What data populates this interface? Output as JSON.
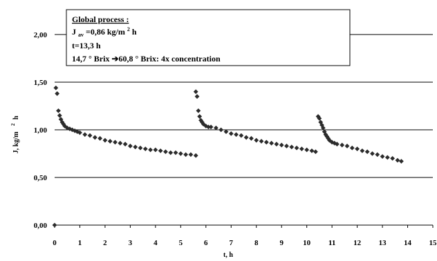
{
  "chart_data": {
    "type": "scatter",
    "title": "",
    "xlabel": "t, h",
    "ylabel_parts": {
      "main": "J, kg/m",
      "exp": "2",
      "tail": "h"
    },
    "xlim": [
      0,
      15
    ],
    "ylim": [
      0,
      2
    ],
    "x_ticks": [
      "0",
      "1",
      "2",
      "3",
      "4",
      "5",
      "6",
      "7",
      "8",
      "9",
      "10",
      "11",
      "12",
      "13",
      "14",
      "15"
    ],
    "y_ticks": [
      "0,00",
      "0,50",
      "1,00",
      "1,50",
      "2,00"
    ],
    "grid": "horizontal",
    "legend": "none",
    "marker": "diamond",
    "color": "#2b2b2b",
    "annotation": {
      "heading": "Global process :",
      "line_jav_sym": "J",
      "line_jav_sub": "av",
      "line_jav_val": "=0,86 kg/m",
      "line_jav_exp": "2",
      "line_jav_tail": "h",
      "line_t": "t=13,3 h",
      "line_brix": "14,7 ° Brix ➔60,8 ° Brix: 4x concentration"
    },
    "series": [
      {
        "points": [
          [
            0.0,
            0.0
          ],
          [
            0.05,
            1.44
          ],
          [
            0.1,
            1.38
          ],
          [
            0.15,
            1.2
          ],
          [
            0.2,
            1.15
          ],
          [
            0.25,
            1.11
          ],
          [
            0.3,
            1.08
          ],
          [
            0.35,
            1.06
          ],
          [
            0.4,
            1.04
          ],
          [
            0.5,
            1.02
          ],
          [
            0.6,
            1.01
          ],
          [
            0.7,
            1.0
          ],
          [
            0.8,
            0.99
          ],
          [
            0.9,
            0.98
          ],
          [
            1.0,
            0.97
          ],
          [
            1.2,
            0.95
          ],
          [
            1.4,
            0.94
          ],
          [
            1.6,
            0.92
          ],
          [
            1.8,
            0.91
          ],
          [
            2.0,
            0.89
          ],
          [
            2.2,
            0.88
          ],
          [
            2.4,
            0.87
          ],
          [
            2.6,
            0.86
          ],
          [
            2.8,
            0.85
          ],
          [
            3.0,
            0.83
          ],
          [
            3.2,
            0.82
          ],
          [
            3.4,
            0.81
          ],
          [
            3.6,
            0.8
          ],
          [
            3.8,
            0.79
          ],
          [
            4.0,
            0.79
          ],
          [
            4.2,
            0.78
          ],
          [
            4.4,
            0.77
          ],
          [
            4.6,
            0.76
          ],
          [
            4.8,
            0.76
          ],
          [
            5.0,
            0.75
          ],
          [
            5.2,
            0.74
          ],
          [
            5.4,
            0.74
          ],
          [
            5.6,
            0.73
          ],
          [
            5.6,
            1.4
          ],
          [
            5.65,
            1.35
          ],
          [
            5.7,
            1.2
          ],
          [
            5.75,
            1.14
          ],
          [
            5.8,
            1.1
          ],
          [
            5.85,
            1.08
          ],
          [
            5.9,
            1.06
          ],
          [
            6.0,
            1.04
          ],
          [
            6.1,
            1.03
          ],
          [
            6.2,
            1.03
          ],
          [
            6.4,
            1.02
          ],
          [
            6.6,
            1.0
          ],
          [
            6.8,
            0.98
          ],
          [
            7.0,
            0.96
          ],
          [
            7.2,
            0.95
          ],
          [
            7.4,
            0.94
          ],
          [
            7.6,
            0.92
          ],
          [
            7.8,
            0.91
          ],
          [
            8.0,
            0.89
          ],
          [
            8.2,
            0.88
          ],
          [
            8.4,
            0.87
          ],
          [
            8.6,
            0.86
          ],
          [
            8.8,
            0.85
          ],
          [
            9.0,
            0.84
          ],
          [
            9.2,
            0.83
          ],
          [
            9.4,
            0.82
          ],
          [
            9.6,
            0.81
          ],
          [
            9.8,
            0.8
          ],
          [
            10.0,
            0.79
          ],
          [
            10.2,
            0.78
          ],
          [
            10.35,
            0.77
          ],
          [
            10.45,
            1.14
          ],
          [
            10.5,
            1.12
          ],
          [
            10.55,
            1.08
          ],
          [
            10.6,
            1.05
          ],
          [
            10.65,
            1.02
          ],
          [
            10.7,
            0.98
          ],
          [
            10.75,
            0.95
          ],
          [
            10.8,
            0.93
          ],
          [
            10.85,
            0.91
          ],
          [
            10.9,
            0.89
          ],
          [
            11.0,
            0.87
          ],
          [
            11.1,
            0.86
          ],
          [
            11.2,
            0.85
          ],
          [
            11.4,
            0.84
          ],
          [
            11.6,
            0.83
          ],
          [
            11.8,
            0.81
          ],
          [
            12.0,
            0.8
          ],
          [
            12.2,
            0.78
          ],
          [
            12.4,
            0.77
          ],
          [
            12.6,
            0.75
          ],
          [
            12.8,
            0.74
          ],
          [
            13.0,
            0.72
          ],
          [
            13.2,
            0.71
          ],
          [
            13.4,
            0.7
          ],
          [
            13.6,
            0.68
          ],
          [
            13.75,
            0.67
          ]
        ]
      }
    ]
  }
}
